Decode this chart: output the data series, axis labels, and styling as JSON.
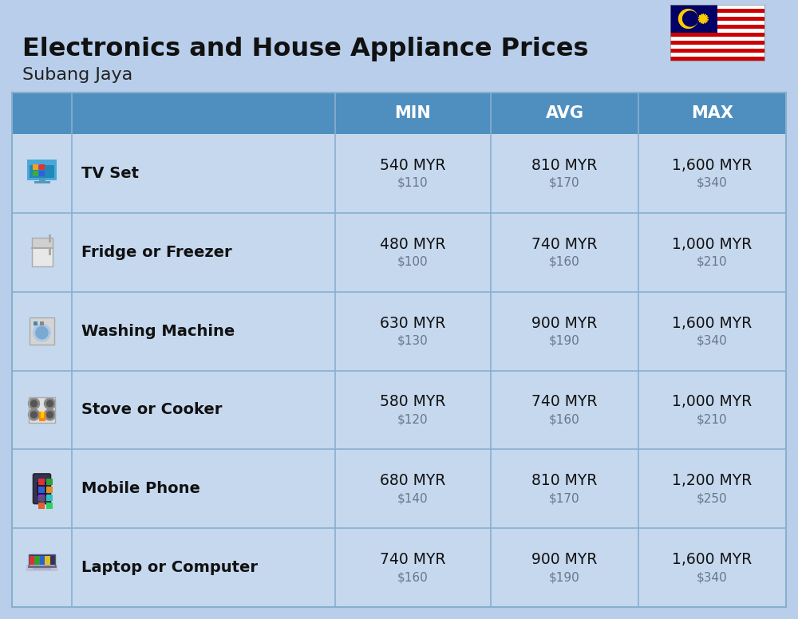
{
  "title_line1": "Electronics and House Appliance Prices",
  "subtitle": "Subang Jaya",
  "background_color": "#b8ceea",
  "header_bg_color": "#4f8fbf",
  "header_text_color": "#ffffff",
  "row_bg_light": "#c5d8ee",
  "row_bg_dark": "#b8cce4",
  "divider_color": "#8aaecf",
  "col_headers": [
    "MIN",
    "AVG",
    "MAX"
  ],
  "items": [
    {
      "name": "TV Set",
      "min_myr": "540 MYR",
      "min_usd": "$110",
      "avg_myr": "810 MYR",
      "avg_usd": "$170",
      "max_myr": "1,600 MYR",
      "max_usd": "$340"
    },
    {
      "name": "Fridge or Freezer",
      "min_myr": "480 MYR",
      "min_usd": "$100",
      "avg_myr": "740 MYR",
      "avg_usd": "$160",
      "max_myr": "1,000 MYR",
      "max_usd": "$210"
    },
    {
      "name": "Washing Machine",
      "min_myr": "630 MYR",
      "min_usd": "$130",
      "avg_myr": "900 MYR",
      "avg_usd": "$190",
      "max_myr": "1,600 MYR",
      "max_usd": "$340"
    },
    {
      "name": "Stove or Cooker",
      "min_myr": "580 MYR",
      "min_usd": "$120",
      "avg_myr": "740 MYR",
      "avg_usd": "$160",
      "max_myr": "1,000 MYR",
      "max_usd": "$210"
    },
    {
      "name": "Mobile Phone",
      "min_myr": "680 MYR",
      "min_usd": "$140",
      "avg_myr": "810 MYR",
      "avg_usd": "$170",
      "max_myr": "1,200 MYR",
      "max_usd": "$250"
    },
    {
      "name": "Laptop or Computer",
      "min_myr": "740 MYR",
      "min_usd": "$160",
      "avg_myr": "900 MYR",
      "avg_usd": "$190",
      "max_myr": "1,600 MYR",
      "max_usd": "$340"
    }
  ]
}
